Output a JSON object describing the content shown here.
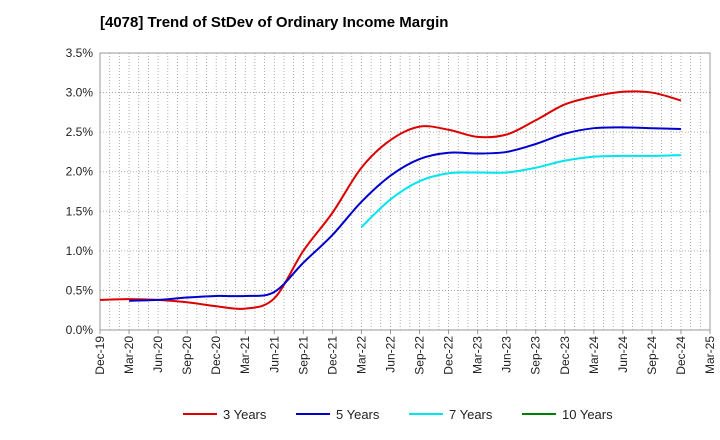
{
  "chart_data": {
    "type": "line",
    "title": "[4078]  Trend of StDev of Ordinary Income Margin",
    "xlabel": "",
    "ylabel": "",
    "ylim": [
      0,
      3.5
    ],
    "y_ticks": [
      "0.0%",
      "0.5%",
      "1.0%",
      "1.5%",
      "2.0%",
      "2.5%",
      "3.0%",
      "3.5%"
    ],
    "x_ticks": [
      "Dec-19",
      "Mar-20",
      "Jun-20",
      "Sep-20",
      "Dec-20",
      "Mar-21",
      "Jun-21",
      "Sep-21",
      "Dec-21",
      "Mar-22",
      "Jun-22",
      "Sep-22",
      "Dec-22",
      "Mar-23",
      "Jun-23",
      "Sep-23",
      "Dec-23",
      "Mar-24",
      "Jun-24",
      "Sep-24",
      "Dec-24",
      "Mar-25"
    ],
    "grid": true,
    "legend_position": "bottom",
    "series": [
      {
        "name": "3 Years",
        "color": "#dd0000",
        "x": [
          "Dec-19",
          "Mar-20",
          "Jun-20",
          "Sep-20",
          "Dec-20",
          "Mar-21",
          "Jun-21",
          "Sep-21",
          "Dec-21",
          "Mar-22",
          "Jun-22",
          "Sep-22",
          "Dec-22",
          "Mar-23",
          "Jun-23",
          "Sep-23",
          "Dec-23",
          "Mar-24",
          "Jun-24",
          "Sep-24",
          "Dec-24"
        ],
        "values": [
          0.38,
          0.39,
          0.38,
          0.35,
          0.3,
          0.27,
          0.4,
          1.0,
          1.48,
          2.05,
          2.4,
          2.57,
          2.53,
          2.44,
          2.47,
          2.65,
          2.85,
          2.95,
          3.01,
          3.0,
          2.9
        ]
      },
      {
        "name": "5 Years",
        "color": "#0000cc",
        "x": [
          "Mar-20",
          "Jun-20",
          "Sep-20",
          "Dec-20",
          "Mar-21",
          "Jun-21",
          "Sep-21",
          "Dec-21",
          "Mar-22",
          "Jun-22",
          "Sep-22",
          "Dec-22",
          "Mar-23",
          "Jun-23",
          "Sep-23",
          "Dec-23",
          "Mar-24",
          "Jun-24",
          "Sep-24",
          "Dec-24"
        ],
        "values": [
          0.37,
          0.38,
          0.41,
          0.43,
          0.43,
          0.48,
          0.85,
          1.2,
          1.62,
          1.95,
          2.16,
          2.24,
          2.23,
          2.25,
          2.35,
          2.48,
          2.55,
          2.56,
          2.55,
          2.54
        ]
      },
      {
        "name": "7 Years",
        "color": "#00e5ee",
        "x": [
          "Mar-22",
          "Jun-22",
          "Sep-22",
          "Dec-22",
          "Mar-23",
          "Jun-23",
          "Sep-23",
          "Dec-23",
          "Mar-24",
          "Jun-24",
          "Sep-24",
          "Dec-24"
        ],
        "values": [
          1.3,
          1.65,
          1.88,
          1.98,
          1.99,
          1.99,
          2.05,
          2.14,
          2.19,
          2.2,
          2.2,
          2.21
        ]
      },
      {
        "name": "10 Years",
        "color": "#008000",
        "x": [],
        "values": []
      }
    ]
  }
}
